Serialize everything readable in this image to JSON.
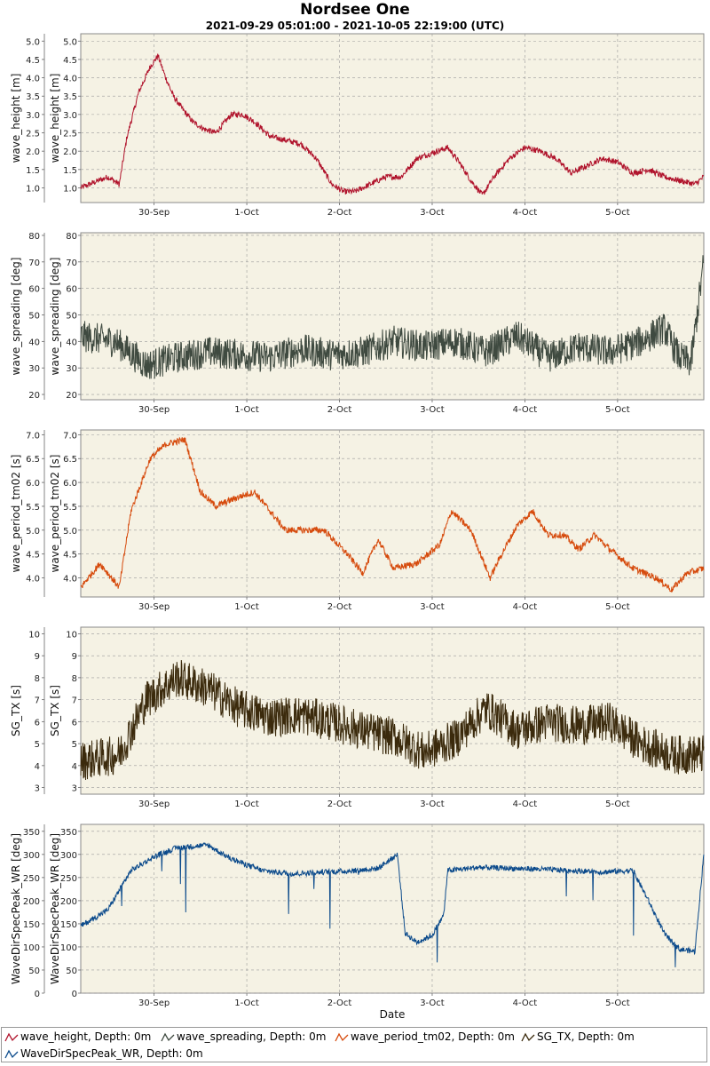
{
  "title": "Nordsee One",
  "subtitle": "2021-09-29 05:01:00 - 2021-10-05 22:19:00 (UTC)",
  "chart_data": [
    {
      "type": "line",
      "ylabel": "wave_height [m]",
      "xlim": [
        "2021-09-29 05:01",
        "2021-10-05 22:19"
      ],
      "ylim": [
        0.6,
        5.2
      ],
      "yticks": [
        "1.0",
        "1.5",
        "2.0",
        "2.5",
        "3.0",
        "3.5",
        "4.0",
        "4.5",
        "5.0"
      ],
      "xticks": [
        "30-Sep",
        "1-Oct",
        "2-Oct",
        "3-Oct",
        "4-Oct",
        "5-Oct"
      ],
      "grid": true,
      "color": "#b0122b",
      "series": [
        {
          "name": "wave_height, Depth: 0m",
          "x": [
            "2021-09-29 05:00",
            "2021-09-29 12:00",
            "2021-09-29 15:00",
            "2021-09-29 17:00",
            "2021-09-29 20:00",
            "2021-09-29 23:00",
            "2021-09-30 01:00",
            "2021-09-30 03:00",
            "2021-09-30 05:00",
            "2021-09-30 07:00",
            "2021-09-30 10:00",
            "2021-09-30 13:00",
            "2021-09-30 16:00",
            "2021-09-30 20:00",
            "2021-09-30 23:00",
            "2021-10-01 02:00",
            "2021-10-01 06:00",
            "2021-10-01 10:00",
            "2021-10-01 14:00",
            "2021-10-01 18:00",
            "2021-10-01 22:00",
            "2021-10-02 01:00",
            "2021-10-02 04:00",
            "2021-10-02 08:00",
            "2021-10-02 12:00",
            "2021-10-02 16:00",
            "2021-10-02 20:00",
            "2021-10-03 00:00",
            "2021-10-03 04:00",
            "2021-10-03 07:00",
            "2021-10-03 10:00",
            "2021-10-03 13:00",
            "2021-10-03 16:00",
            "2021-10-03 20:00",
            "2021-10-04 00:00",
            "2021-10-04 04:00",
            "2021-10-04 08:00",
            "2021-10-04 12:00",
            "2021-10-04 16:00",
            "2021-10-04 20:00",
            "2021-10-05 00:00",
            "2021-10-05 04:00",
            "2021-10-05 08:00",
            "2021-10-05 12:00",
            "2021-10-05 16:00",
            "2021-10-05 20:00",
            "2021-10-05 22:19"
          ],
          "values": [
            1.0,
            1.3,
            1.1,
            2.4,
            3.6,
            4.3,
            4.6,
            4.0,
            3.5,
            3.2,
            2.8,
            2.6,
            2.5,
            3.0,
            3.0,
            2.8,
            2.4,
            2.3,
            2.2,
            1.8,
            1.1,
            0.9,
            0.9,
            1.1,
            1.3,
            1.3,
            1.8,
            1.95,
            2.1,
            1.7,
            1.2,
            0.8,
            1.3,
            1.8,
            2.1,
            2.0,
            1.8,
            1.4,
            1.6,
            1.8,
            1.7,
            1.4,
            1.5,
            1.3,
            1.2,
            1.1,
            1.3
          ]
        }
      ]
    },
    {
      "type": "line",
      "ylabel": "wave_spreading [deg]",
      "xlim": [
        "2021-09-29 05:01",
        "2021-10-05 22:19"
      ],
      "ylim": [
        18,
        81
      ],
      "yticks": [
        "20",
        "30",
        "40",
        "50",
        "60",
        "70",
        "80"
      ],
      "xticks": [
        "30-Sep",
        "1-Oct",
        "2-Oct",
        "3-Oct",
        "4-Oct",
        "5-Oct"
      ],
      "grid": true,
      "color": "#3f4a40",
      "series": [
        {
          "name": "wave_spreading, Depth: 0m",
          "x": [
            "2021-09-29 05:00",
            "2021-09-29 14:00",
            "2021-09-29 22:00",
            "2021-09-30 06:00",
            "2021-09-30 14:00",
            "2021-09-30 22:00",
            "2021-10-01 06:00",
            "2021-10-01 14:00",
            "2021-10-01 22:00",
            "2021-10-02 06:00",
            "2021-10-02 14:00",
            "2021-10-02 22:00",
            "2021-10-03 06:00",
            "2021-10-03 14:00",
            "2021-10-03 22:00",
            "2021-10-04 06:00",
            "2021-10-04 14:00",
            "2021-10-04 22:00",
            "2021-10-05 06:00",
            "2021-10-05 12:00",
            "2021-10-05 16:00",
            "2021-10-05 19:00",
            "2021-10-05 22:19"
          ],
          "values": [
            42,
            40,
            31,
            34,
            36,
            35,
            34,
            37,
            35,
            36,
            40,
            38,
            40,
            36,
            42,
            34,
            38,
            36,
            40,
            45,
            34,
            32,
            70
          ]
        }
      ]
    },
    {
      "type": "line",
      "ylabel": "wave_period_tm02 [s]",
      "xlim": [
        "2021-09-29 05:01",
        "2021-10-05 22:19"
      ],
      "ylim": [
        3.6,
        7.1
      ],
      "yticks": [
        "4.0",
        "4.5",
        "5.0",
        "5.5",
        "6.0",
        "6.5",
        "7.0"
      ],
      "xticks": [
        "30-Sep",
        "1-Oct",
        "2-Oct",
        "3-Oct",
        "4-Oct",
        "5-Oct"
      ],
      "grid": true,
      "color": "#d64a0c",
      "series": [
        {
          "name": "wave_period_tm02, Depth: 0m",
          "x": [
            "2021-09-29 05:00",
            "2021-09-29 10:00",
            "2021-09-29 15:00",
            "2021-09-29 18:00",
            "2021-09-29 23:00",
            "2021-09-30 03:00",
            "2021-09-30 08:00",
            "2021-09-30 12:00",
            "2021-09-30 16:00",
            "2021-09-30 22:00",
            "2021-10-01 02:00",
            "2021-10-01 06:00",
            "2021-10-01 10:00",
            "2021-10-01 14:00",
            "2021-10-01 20:00",
            "2021-10-02 02:00",
            "2021-10-02 06:00",
            "2021-10-02 10:00",
            "2021-10-02 14:00",
            "2021-10-02 20:00",
            "2021-10-03 02:00",
            "2021-10-03 05:00",
            "2021-10-03 10:00",
            "2021-10-03 15:00",
            "2021-10-03 18:00",
            "2021-10-03 22:00",
            "2021-10-04 02:00",
            "2021-10-04 06:00",
            "2021-10-04 10:00",
            "2021-10-04 14:00",
            "2021-10-04 18:00",
            "2021-10-04 22:00",
            "2021-10-05 04:00",
            "2021-10-05 10:00",
            "2021-10-05 14:00",
            "2021-10-05 18:00",
            "2021-10-05 22:19"
          ],
          "values": [
            3.8,
            4.3,
            3.8,
            5.4,
            6.5,
            6.8,
            6.9,
            5.8,
            5.5,
            5.7,
            5.8,
            5.4,
            5.0,
            5.0,
            5.0,
            4.5,
            4.1,
            4.8,
            4.2,
            4.3,
            4.7,
            5.4,
            5.0,
            4.0,
            4.5,
            5.1,
            5.4,
            4.9,
            4.9,
            4.6,
            4.9,
            4.6,
            4.2,
            4.0,
            3.75,
            4.1,
            4.2
          ]
        }
      ]
    },
    {
      "type": "line",
      "ylabel": "SG_TX [s]",
      "xlim": [
        "2021-09-29 05:01",
        "2021-10-05 22:19"
      ],
      "ylim": [
        2.7,
        10.3
      ],
      "yticks": [
        "3",
        "4",
        "5",
        "6",
        "7",
        "8",
        "9",
        "10"
      ],
      "xticks": [
        "30-Sep",
        "1-Oct",
        "2-Oct",
        "3-Oct",
        "4-Oct",
        "5-Oct"
      ],
      "grid": true,
      "color": "#3b2a0c",
      "series": [
        {
          "name": "SG_TX, Depth: 0m",
          "x": [
            "2021-09-29 05:00",
            "2021-09-29 15:00",
            "2021-09-29 22:00",
            "2021-09-30 06:00",
            "2021-09-30 14:00",
            "2021-09-30 22:00",
            "2021-10-01 06:00",
            "2021-10-01 14:00",
            "2021-10-01 22:00",
            "2021-10-02 06:00",
            "2021-10-02 14:00",
            "2021-10-02 22:00",
            "2021-10-03 06:00",
            "2021-10-03 14:00",
            "2021-10-03 22:00",
            "2021-10-04 06:00",
            "2021-10-04 14:00",
            "2021-10-04 22:00",
            "2021-10-05 06:00",
            "2021-10-05 14:00",
            "2021-10-05 22:19"
          ],
          "values": [
            4.2,
            4.5,
            7.0,
            8.0,
            7.5,
            6.6,
            6.2,
            6.3,
            6.0,
            5.6,
            5.3,
            4.6,
            5.2,
            6.6,
            5.6,
            6.0,
            5.8,
            6.0,
            5.0,
            4.5,
            4.5
          ]
        }
      ]
    },
    {
      "type": "line",
      "ylabel": "WaveDirSpecPeak_WR [deg]",
      "xlabel": "Date",
      "xlim": [
        "2021-09-29 05:01",
        "2021-10-05 22:19"
      ],
      "ylim": [
        0,
        365
      ],
      "yticks": [
        "0",
        "50",
        "100",
        "150",
        "200",
        "250",
        "300",
        "350"
      ],
      "xticks": [
        "30-Sep",
        "1-Oct",
        "2-Oct",
        "3-Oct",
        "4-Oct",
        "5-Oct"
      ],
      "grid": true,
      "color": "#0b4a8b",
      "series": [
        {
          "name": "WaveDirSpecPeak_WR, Depth: 0m",
          "x": [
            "2021-09-29 05:00",
            "2021-09-29 12:00",
            "2021-09-29 18:00",
            "2021-09-30 00:00",
            "2021-09-30 06:00",
            "2021-09-30 14:00",
            "2021-09-30 20:00",
            "2021-10-01 04:00",
            "2021-10-01 12:00",
            "2021-10-01 20:00",
            "2021-10-02 04:00",
            "2021-10-02 10:00",
            "2021-10-02 15:00",
            "2021-10-02 17:00",
            "2021-10-02 20:00",
            "2021-10-03 00:00",
            "2021-10-03 03:00",
            "2021-10-03 04:00",
            "2021-10-03 12:00",
            "2021-10-03 20:00",
            "2021-10-04 04:00",
            "2021-10-04 12:00",
            "2021-10-04 20:00",
            "2021-10-05 04:00",
            "2021-10-05 08:00",
            "2021-10-05 12:00",
            "2021-10-05 16:00",
            "2021-10-05 20:00",
            "2021-10-05 22:19"
          ],
          "values": [
            145,
            180,
            265,
            295,
            315,
            320,
            290,
            265,
            258,
            262,
            265,
            270,
            300,
            130,
            110,
            125,
            170,
            265,
            272,
            270,
            268,
            265,
            262,
            265,
            200,
            130,
            95,
            90,
            300
          ]
        }
      ]
    }
  ],
  "legend": [
    {
      "label": "wave_height, Depth: 0m",
      "color": "#b0122b"
    },
    {
      "label": "wave_spreading, Depth: 0m",
      "color": "#3f4a40"
    },
    {
      "label": "wave_period_tm02, Depth: 0m",
      "color": "#d64a0c"
    },
    {
      "label": "SG_TX, Depth: 0m",
      "color": "#3b2a0c"
    },
    {
      "label": "WaveDirSpecPeak_WR, Depth: 0m",
      "color": "#0b4a8b"
    }
  ]
}
